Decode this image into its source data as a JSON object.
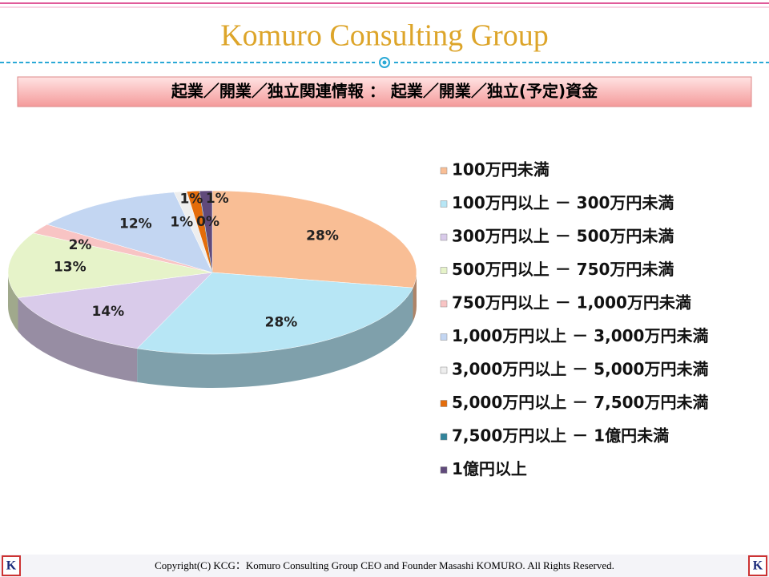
{
  "header": {
    "title": "Komuro Consulting Group",
    "banner": "起業／開業／独立関連情報 ： 起業／開業／独立(予定)資金"
  },
  "chart_data": {
    "type": "pie",
    "categories": [
      "100万円未満",
      "100万円以上 － 300万円未満",
      "300万円以上 － 500万円未満",
      "500万円以上 － 750万円未満",
      "750万円以上 － 1,000万円未満",
      "1,000万円以上 － 3,000万円未満",
      "3,000万円以上 － 5,000万円未満",
      "5,000万円以上 － 7,500万円未満",
      "7,500万円以上 － 1億円未満",
      "1億円以上"
    ],
    "values": [
      28,
      28,
      14,
      13,
      2,
      12,
      1,
      1,
      0,
      1
    ],
    "value_labels": [
      "28%",
      "28%",
      "14%",
      "13%",
      "2%",
      "12%",
      "1%",
      "1%",
      "0%",
      "1%"
    ],
    "colors": [
      "#f9be95",
      "#b7e6f5",
      "#d9cbea",
      "#e6f3c9",
      "#f8c4c4",
      "#c3d6f2",
      "#eeeeee",
      "#e46c0a",
      "#31849b",
      "#604a7b"
    ],
    "legend": "right"
  },
  "footer": {
    "copyright": "Copyright(C)  KCG：Komuro Consulting Group   CEO and Founder  Masashi KOMURO. All Rights Reserved.",
    "logo": "K"
  }
}
